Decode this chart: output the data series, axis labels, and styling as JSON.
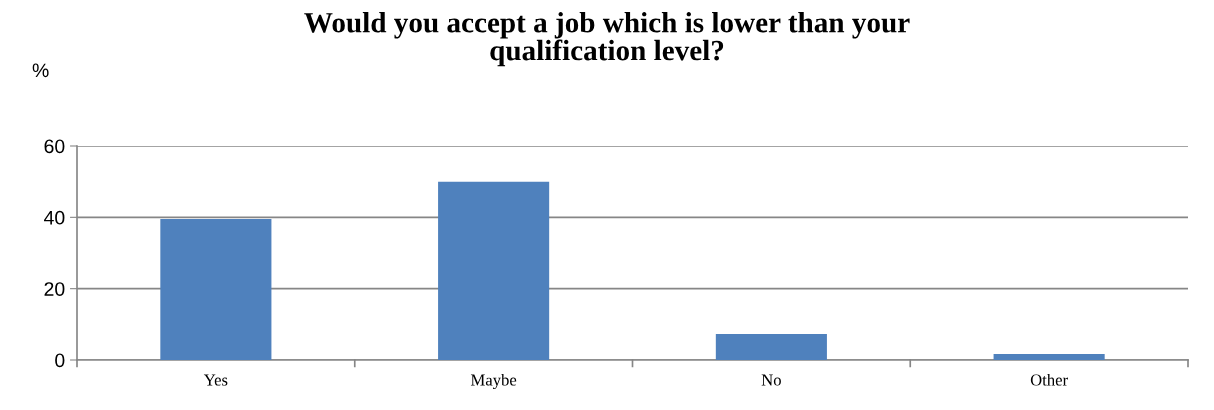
{
  "chart_data": {
    "type": "bar",
    "title": "Would you accept a job which is lower than your\nqualification level?",
    "ylabel": "%",
    "categories": [
      "Yes",
      "Maybe",
      "No",
      "Other"
    ],
    "values": [
      39.5,
      50,
      7.3,
      1.7
    ],
    "color": "#4f81bd",
    "ylim": [
      0,
      60
    ],
    "yticks": [
      0,
      20,
      40,
      60
    ],
    "grid": "y",
    "legend": false
  }
}
